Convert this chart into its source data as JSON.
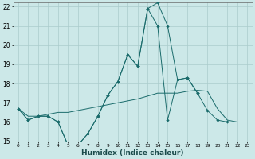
{
  "xlabel": "Humidex (Indice chaleur)",
  "background_color": "#cce8e8",
  "grid_color": "#aacccc",
  "line_color": "#1a6b6b",
  "x_values": [
    0,
    1,
    2,
    3,
    4,
    5,
    6,
    7,
    8,
    9,
    10,
    11,
    12,
    13,
    14,
    15,
    16,
    17,
    18,
    19,
    20,
    21,
    22,
    23
  ],
  "line_main": [
    16.7,
    16.1,
    16.3,
    16.3,
    16.0,
    14.8,
    14.8,
    15.4,
    16.3,
    17.4,
    18.1,
    19.5,
    18.9,
    21.9,
    22.2,
    21.0,
    18.2,
    18.3,
    17.5,
    null,
    null,
    null,
    null,
    null
  ],
  "line_second": [
    16.7,
    16.1,
    16.3,
    16.3,
    16.0,
    14.8,
    14.8,
    15.4,
    16.3,
    17.4,
    18.1,
    19.5,
    18.9,
    21.9,
    21.0,
    16.1,
    18.2,
    18.3,
    17.5,
    16.6,
    16.1,
    16.0,
    null,
    null
  ],
  "line_flat": [
    16.0,
    16.0,
    16.0,
    16.0,
    16.0,
    16.0,
    16.0,
    16.0,
    16.0,
    16.0,
    16.0,
    16.0,
    16.0,
    16.0,
    16.0,
    16.0,
    16.0,
    16.0,
    16.0,
    16.0,
    16.0,
    16.0,
    16.0,
    16.0
  ],
  "line_rising": [
    16.7,
    16.3,
    16.3,
    16.4,
    16.5,
    16.5,
    16.6,
    16.7,
    16.8,
    16.9,
    17.0,
    17.1,
    17.2,
    17.35,
    17.5,
    17.5,
    17.5,
    17.6,
    17.65,
    17.6,
    16.7,
    16.1,
    16.0,
    null
  ],
  "ylim": [
    15,
    22
  ],
  "yticks": [
    15,
    16,
    17,
    18,
    19,
    20,
    21,
    22
  ],
  "xlim": [
    -0.5,
    23.5
  ]
}
